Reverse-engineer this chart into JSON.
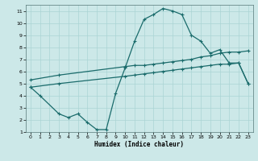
{
  "xlabel": "Humidex (Indice chaleur)",
  "xlim": [
    -0.5,
    23.5
  ],
  "ylim": [
    1,
    11.5
  ],
  "xticks": [
    0,
    1,
    2,
    3,
    4,
    5,
    6,
    7,
    8,
    9,
    10,
    11,
    12,
    13,
    14,
    15,
    16,
    17,
    18,
    19,
    20,
    21,
    22,
    23
  ],
  "yticks": [
    1,
    2,
    3,
    4,
    5,
    6,
    7,
    8,
    9,
    10,
    11
  ],
  "bg_color": "#cce8e8",
  "grid_color": "#aad4d4",
  "line_color": "#1a6b6b",
  "line1_x": [
    0,
    1,
    3,
    4,
    5,
    6,
    7,
    8,
    9,
    10,
    11,
    12,
    13,
    14,
    15,
    16,
    17,
    18,
    19,
    20,
    21,
    22,
    23
  ],
  "line1_y": [
    4.7,
    4.0,
    2.5,
    2.2,
    2.5,
    1.8,
    1.2,
    1.2,
    4.2,
    6.3,
    8.5,
    10.3,
    10.7,
    11.2,
    11.0,
    10.7,
    9.0,
    8.5,
    7.5,
    7.8,
    6.7,
    6.7,
    5.0
  ],
  "line2_x": [
    0,
    3,
    10,
    11,
    12,
    13,
    14,
    15,
    16,
    17,
    18,
    19,
    20,
    21,
    22,
    23
  ],
  "line2_y": [
    5.3,
    5.7,
    6.4,
    6.5,
    6.5,
    6.6,
    6.7,
    6.8,
    6.9,
    7.0,
    7.2,
    7.3,
    7.5,
    7.6,
    7.6,
    7.7
  ],
  "line3_x": [
    0,
    3,
    10,
    11,
    12,
    13,
    14,
    15,
    16,
    17,
    18,
    19,
    20,
    21,
    22,
    23
  ],
  "line3_y": [
    4.7,
    5.0,
    5.6,
    5.7,
    5.8,
    5.9,
    6.0,
    6.1,
    6.2,
    6.3,
    6.4,
    6.5,
    6.6,
    6.6,
    6.7,
    5.0
  ],
  "marker": "+",
  "markersize": 3,
  "linewidth": 0.9
}
